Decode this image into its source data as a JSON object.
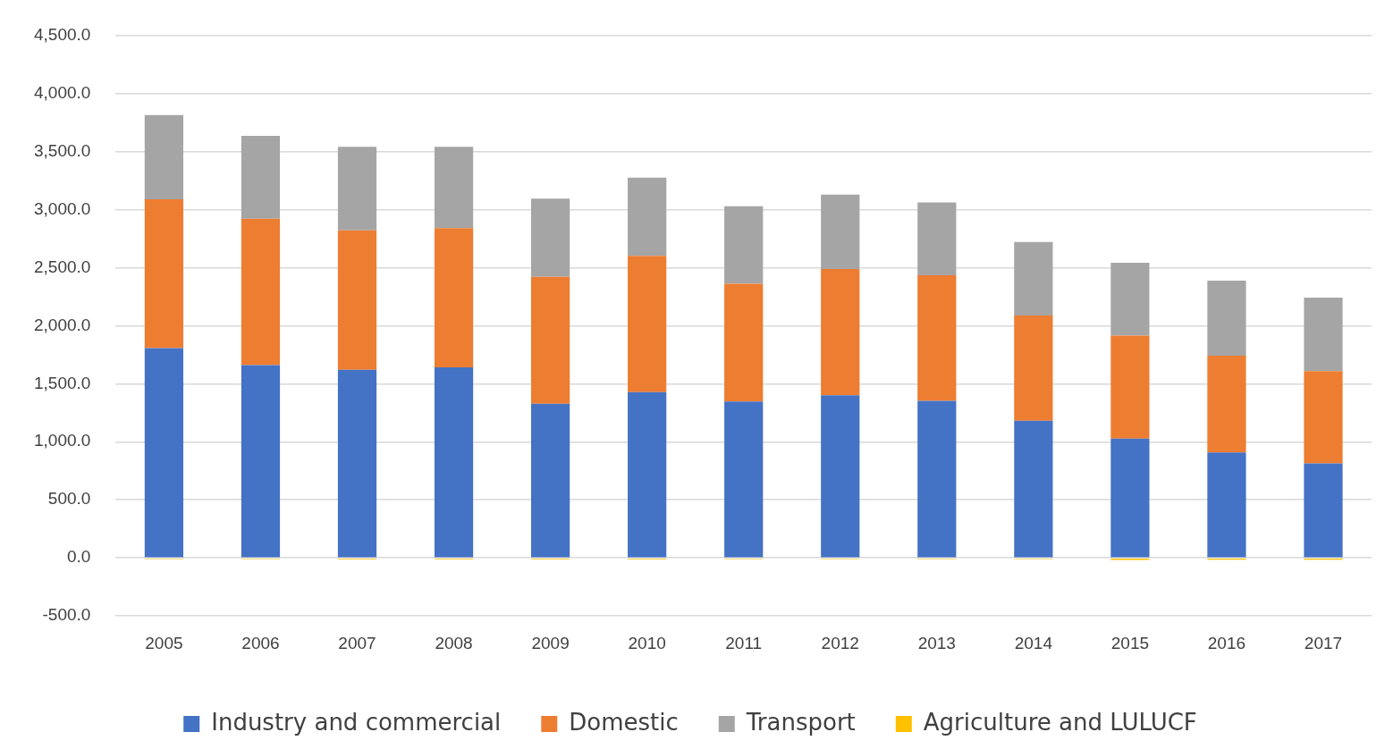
{
  "chart_data": {
    "type": "bar",
    "stacked": true,
    "categories": [
      "2005",
      "2006",
      "2007",
      "2008",
      "2009",
      "2010",
      "2011",
      "2012",
      "2013",
      "2014",
      "2015",
      "2016",
      "2017"
    ],
    "series": [
      {
        "name": "Industry and commercial",
        "color": "#4472c4",
        "values": [
          1807,
          1660,
          1620,
          1640,
          1327,
          1427,
          1347,
          1400,
          1353,
          1180,
          1027,
          907,
          813
        ]
      },
      {
        "name": "Domestic",
        "color": "#ed7d31",
        "values": [
          1280,
          1260,
          1200,
          1200,
          1093,
          1173,
          1013,
          1087,
          1080,
          907,
          886,
          833,
          794
        ]
      },
      {
        "name": "Transport",
        "color": "#a5a5a5",
        "values": [
          726,
          713,
          720,
          700,
          673,
          673,
          667,
          640,
          627,
          633,
          627,
          647,
          633
        ]
      },
      {
        "name": "Agriculture and LULUCF",
        "color": "#ffc000",
        "values": [
          -10,
          -10,
          -12,
          -12,
          -12,
          -12,
          -10,
          -10,
          -10,
          -10,
          -18,
          -15,
          -15
        ]
      }
    ],
    "ylim": [
      -500,
      4500
    ],
    "yticks": [
      {
        "value": -500,
        "label": "-500.0"
      },
      {
        "value": 0,
        "label": "0.0"
      },
      {
        "value": 500,
        "label": "500.0"
      },
      {
        "value": 1000,
        "label": "1,000.0"
      },
      {
        "value": 1500,
        "label": "1,500.0"
      },
      {
        "value": 2000,
        "label": "2,000.0"
      },
      {
        "value": 2500,
        "label": "2,500.0"
      },
      {
        "value": 3000,
        "label": "3,000.0"
      },
      {
        "value": 3500,
        "label": "3,500.0"
      },
      {
        "value": 4000,
        "label": "4,000.0"
      },
      {
        "value": 4500,
        "label": "4,500.0"
      }
    ],
    "grid": "y",
    "legend": "bottom"
  }
}
